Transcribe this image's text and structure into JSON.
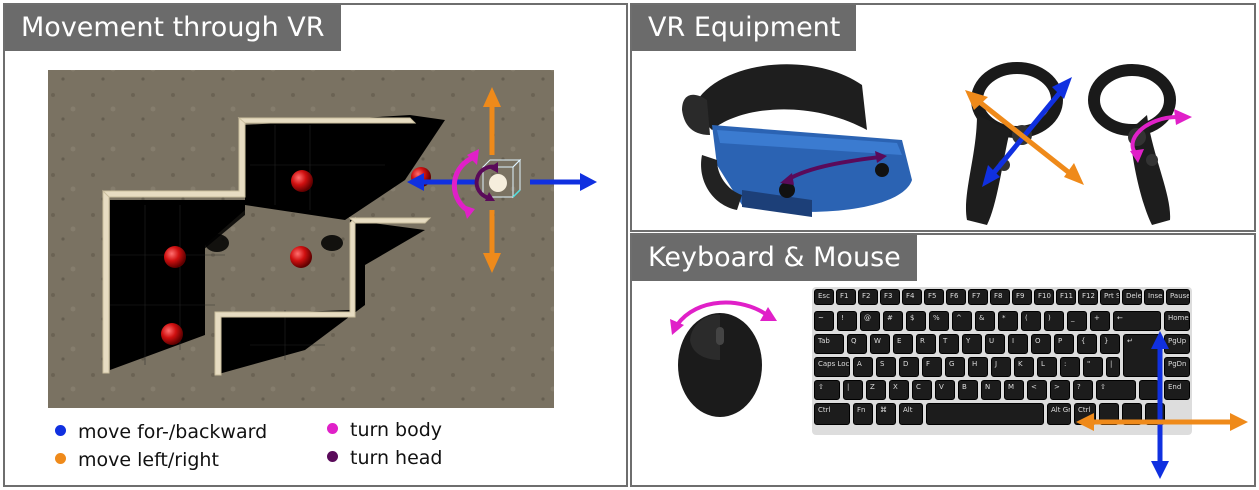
{
  "panels": {
    "movement": {
      "title": "Movement through VR",
      "legend": [
        {
          "label": "move for-/backward",
          "color": "#1030e0"
        },
        {
          "label": "move left/right",
          "color": "#ef8a1a"
        },
        {
          "label": "turn body",
          "color": "#e020c8"
        },
        {
          "label": "turn head",
          "color": "#5a0a5a"
        }
      ]
    },
    "vr": {
      "title": "VR Equipment"
    },
    "keyboard": {
      "title": "Keyboard & Mouse"
    }
  },
  "keyboard": {
    "rows": [
      [
        "Esc",
        "F1",
        "F2",
        "F3",
        "F4",
        "F5",
        "F6",
        "F7",
        "F8",
        "F9",
        "F10",
        "F11",
        "F12",
        "Prt Sc",
        "Delete",
        "Insert",
        "Pause"
      ],
      [
        "~",
        "!",
        "@",
        "#",
        "$",
        "%",
        "^",
        "&",
        "*",
        "(",
        ")",
        "_",
        "+",
        "←",
        "Home"
      ],
      [
        "Tab",
        "Q",
        "W",
        "E",
        "R",
        "T",
        "Y",
        "U",
        "I",
        "O",
        "P",
        "{",
        "}",
        "↵",
        "PgUp"
      ],
      [
        "Caps Lock",
        "A",
        "S",
        "D",
        "F",
        "G",
        "H",
        "J",
        "K",
        "L",
        ":",
        "\"",
        "|",
        "PgDn"
      ],
      [
        "⇧",
        "|",
        "Z",
        "X",
        "C",
        "V",
        "B",
        "N",
        "M",
        "<",
        ">",
        "?",
        "⇧",
        "End"
      ],
      [
        "Ctrl",
        "Fn",
        "⌘",
        "Alt",
        "",
        "Alt Gr",
        "Ctrl"
      ]
    ]
  },
  "colors": {
    "forward": "#1030e0",
    "lateral": "#ef8a1a",
    "body": "#e020c8",
    "head": "#5a0a5a",
    "panel_header": "#6b6b6b"
  }
}
